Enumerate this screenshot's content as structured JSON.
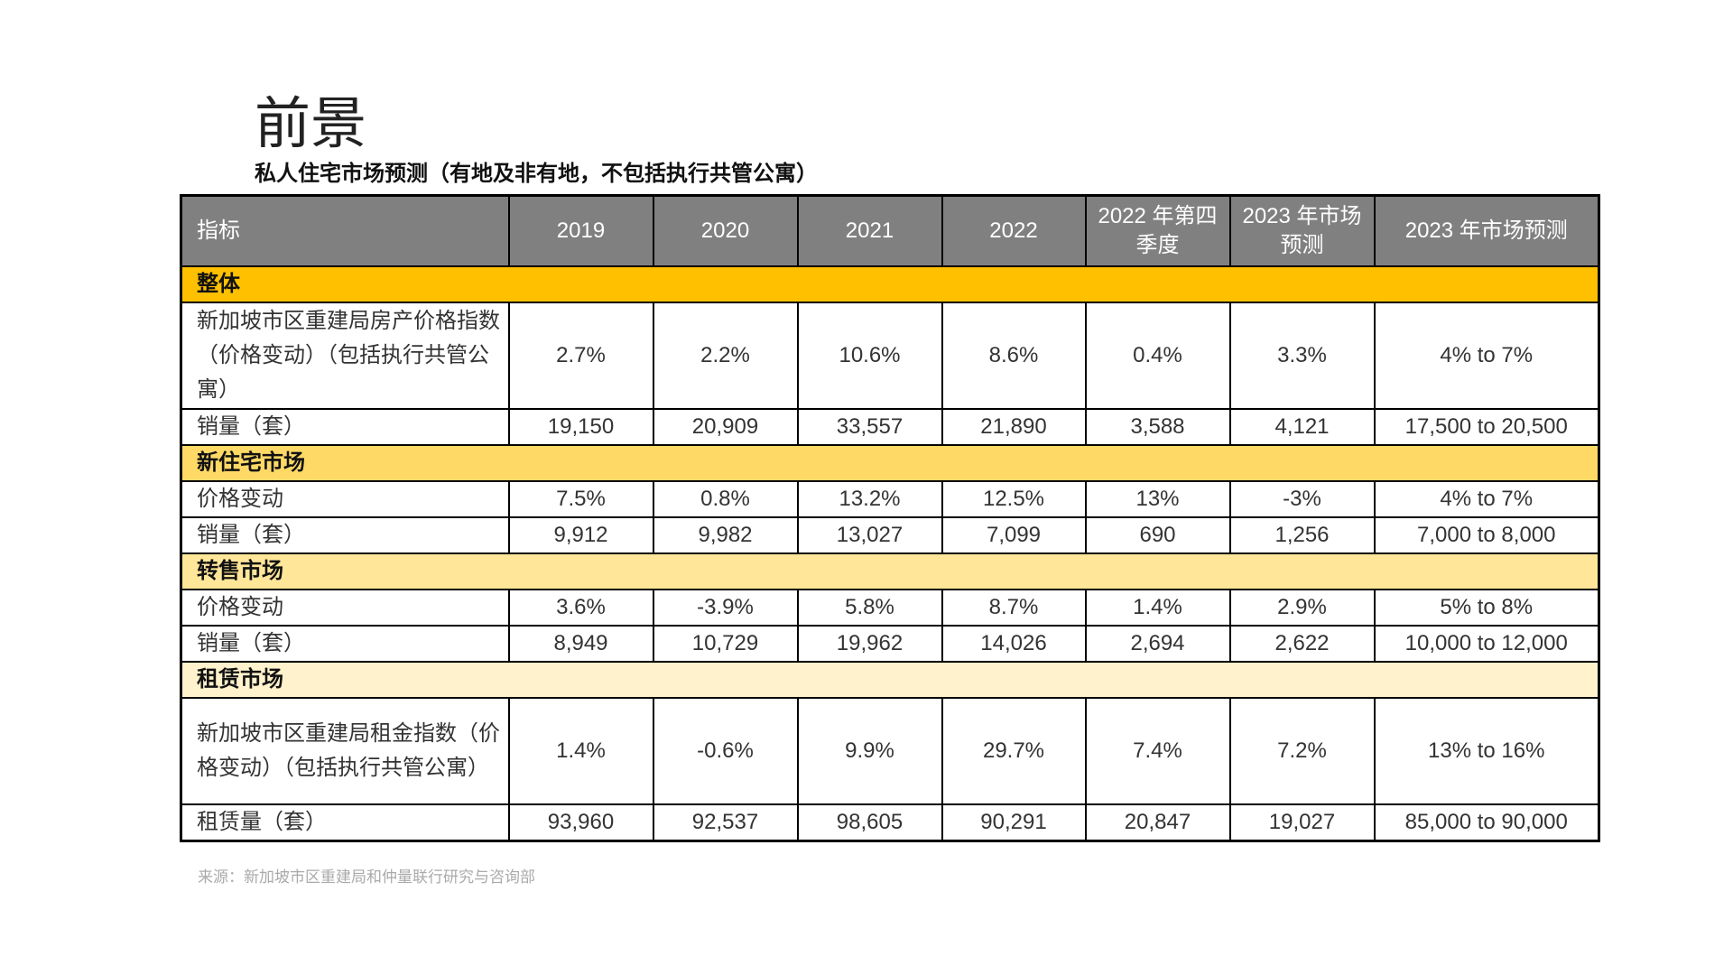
{
  "header": {
    "title": "前景",
    "subtitle": "私人住宅市场预测（有地及非有地，不包括执行共管公寓）"
  },
  "table": {
    "columns": [
      "指标",
      "2019",
      "2020",
      "2021",
      "2022",
      "2022 年第四季度",
      "2023 年市场预测",
      "2023 年市场预测"
    ],
    "sections": [
      {
        "title": "整体",
        "color": "#ffc000",
        "rows": [
          [
            "新加坡市区重建局房产价格指数（价格变动）（包括执行共管公寓）",
            "2.7%",
            "2.2%",
            "10.6%",
            "8.6%",
            "0.4%",
            "3.3%",
            "4% to 7%"
          ],
          [
            "销量（套）",
            "19,150",
            "20,909",
            "33,557",
            "21,890",
            "3,588",
            "4,121",
            "17,500 to 20,500"
          ]
        ]
      },
      {
        "title": "新住宅市场",
        "color": "#ffd966",
        "rows": [
          [
            "价格变动",
            "7.5%",
            "0.8%",
            "13.2%",
            "12.5%",
            "13%",
            "-3%",
            "4% to 7%"
          ],
          [
            "销量（套）",
            "9,912",
            "9,982",
            "13,027",
            "7,099",
            "690",
            "1,256",
            "7,000 to 8,000"
          ]
        ]
      },
      {
        "title": "转售市场",
        "color": "#ffe699",
        "rows": [
          [
            "价格变动",
            "3.6%",
            "-3.9%",
            "5.8%",
            "8.7%",
            "1.4%",
            "2.9%",
            "5% to 8%"
          ],
          [
            "销量（套）",
            "8,949",
            "10,729",
            "19,962",
            "14,026",
            "2,694",
            "2,622",
            "10,000 to 12,000"
          ]
        ]
      },
      {
        "title": "租赁市场",
        "color": "#fff2cc",
        "rows": [
          [
            "新加坡市区重建局租金指数（价格变动）（包括执行共管公寓）",
            "1.4%",
            "-0.6%",
            "9.9%",
            "29.7%",
            "7.4%",
            "7.2%",
            "13% to 16%"
          ],
          [
            "租赁量（套）",
            "93,960",
            "92,537",
            "98,605",
            "90,291",
            "20,847",
            "19,027",
            "85,000 to 90,000"
          ]
        ]
      }
    ]
  },
  "source": "来源：新加坡市区重建局和仲量联行研究与咨询部"
}
